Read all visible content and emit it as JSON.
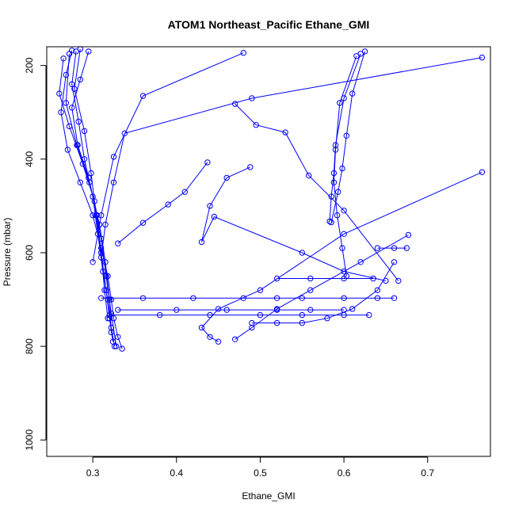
{
  "chart_data": {
    "type": "line",
    "title": "ATOM1 Northeast_Pacific Ethane_GMI",
    "xlabel": "Ethane_GMI",
    "ylabel": "Pressure (mbar)",
    "xlim": [
      0.245,
      0.775
    ],
    "ylim": [
      1035,
      160
    ],
    "y_reversed": true,
    "grid": false,
    "x_ticks": [
      0.3,
      0.4,
      0.5,
      0.6,
      0.7
    ],
    "x_tick_labels": [
      "0.3",
      "0.4",
      "0.5",
      "0.6",
      "0.7"
    ],
    "y_ticks": [
      200,
      400,
      600,
      800,
      1000
    ],
    "y_tick_labels": [
      "200",
      "400",
      "600",
      "800",
      "1000"
    ],
    "series_color": "#0000ff",
    "series": [
      {
        "x": [
          0.275,
          0.268,
          0.262,
          0.27,
          0.285,
          0.3,
          0.31,
          0.318,
          0.322,
          0.325,
          0.33,
          0.335
        ],
        "y": [
          168,
          220,
          300,
          380,
          450,
          520,
          590,
          650,
          700,
          740,
          780,
          805
        ]
      },
      {
        "x": [
          0.28,
          0.275,
          0.283,
          0.29,
          0.3,
          0.306,
          0.312,
          0.318,
          0.322,
          0.326
        ],
        "y": [
          170,
          240,
          320,
          400,
          480,
          560,
          640,
          700,
          760,
          800
        ]
      },
      {
        "x": [
          0.285,
          0.278,
          0.29,
          0.298,
          0.304,
          0.31,
          0.314,
          0.318
        ],
        "y": [
          165,
          250,
          340,
          430,
          520,
          600,
          680,
          740
        ]
      },
      {
        "x": [
          0.295,
          0.285,
          0.275,
          0.282,
          0.295,
          0.305,
          0.31,
          0.316,
          0.32,
          0.324
        ],
        "y": [
          170,
          230,
          290,
          370,
          440,
          520,
          600,
          680,
          740,
          790
        ]
      },
      {
        "x": [
          0.265,
          0.26,
          0.272,
          0.288,
          0.302,
          0.31,
          0.316,
          0.322,
          0.328
        ],
        "y": [
          185,
          260,
          330,
          410,
          490,
          570,
          650,
          730,
          800
        ]
      },
      {
        "x": [
          0.272,
          0.268,
          0.281,
          0.296,
          0.308,
          0.315,
          0.32,
          0.322
        ],
        "y": [
          175,
          280,
          370,
          450,
          540,
          620,
          700,
          770
        ]
      },
      {
        "x": [
          0.48,
          0.36,
          0.325,
          0.31,
          0.3
        ],
        "y": [
          173,
          265,
          395,
          520,
          620
        ]
      },
      {
        "x": [
          0.765,
          0.49,
          0.338,
          0.325,
          0.315,
          0.31
        ],
        "y": [
          183,
          270,
          345,
          450,
          540,
          610
        ]
      },
      {
        "x": [
          0.62,
          0.6,
          0.59,
          0.588,
          0.585,
          0.583
        ],
        "y": [
          175,
          270,
          370,
          430,
          480,
          533
        ]
      },
      {
        "x": [
          0.625,
          0.61,
          0.603,
          0.598,
          0.593,
          0.585
        ],
        "y": [
          170,
          260,
          350,
          420,
          470,
          535
        ]
      },
      {
        "x": [
          0.615,
          0.595,
          0.59,
          0.588,
          0.592,
          0.598,
          0.603
        ],
        "y": [
          180,
          280,
          380,
          450,
          520,
          590,
          650
        ]
      },
      {
        "x": [
          0.47,
          0.495,
          0.53,
          0.558,
          0.6,
          0.665
        ],
        "y": [
          282,
          327,
          343,
          435,
          510,
          660
        ]
      },
      {
        "x": [
          0.488,
          0.46,
          0.44,
          0.43,
          0.445,
          0.55,
          0.6,
          0.65
        ],
        "y": [
          417,
          440,
          500,
          577,
          523,
          600,
          640,
          660
        ]
      },
      {
        "x": [
          0.437,
          0.41,
          0.39,
          0.36,
          0.33
        ],
        "y": [
          407,
          470,
          497,
          536,
          580
        ]
      },
      {
        "x": [
          0.765,
          0.6,
          0.5,
          0.45,
          0.43,
          0.44,
          0.45
        ],
        "y": [
          428,
          560,
          680,
          720,
          760,
          780,
          790
        ]
      },
      {
        "x": [
          0.677,
          0.62,
          0.56,
          0.52,
          0.49,
          0.47
        ],
        "y": [
          562,
          620,
          680,
          720,
          760,
          785
        ]
      },
      {
        "x": [
          0.31,
          0.36,
          0.42,
          0.48,
          0.52,
          0.55,
          0.6,
          0.64,
          0.66
        ],
        "y": [
          697,
          697,
          697,
          697,
          697,
          697,
          697,
          697,
          697
        ]
      },
      {
        "x": [
          0.32,
          0.38,
          0.44,
          0.5,
          0.55,
          0.6,
          0.63
        ],
        "y": [
          733,
          733,
          733,
          733,
          733,
          733,
          733
        ]
      },
      {
        "x": [
          0.33,
          0.4,
          0.46,
          0.52,
          0.56,
          0.6
        ],
        "y": [
          722,
          722,
          722,
          722,
          722,
          722
        ]
      },
      {
        "x": [
          0.49,
          0.52,
          0.55,
          0.58,
          0.61,
          0.64,
          0.66
        ],
        "y": [
          750,
          750,
          750,
          740,
          720,
          680,
          620
        ]
      },
      {
        "x": [
          0.64,
          0.66,
          0.675
        ],
        "y": [
          590,
          590,
          590
        ]
      },
      {
        "x": [
          0.52,
          0.56,
          0.6,
          0.635
        ],
        "y": [
          655,
          655,
          655,
          655
        ]
      }
    ]
  }
}
